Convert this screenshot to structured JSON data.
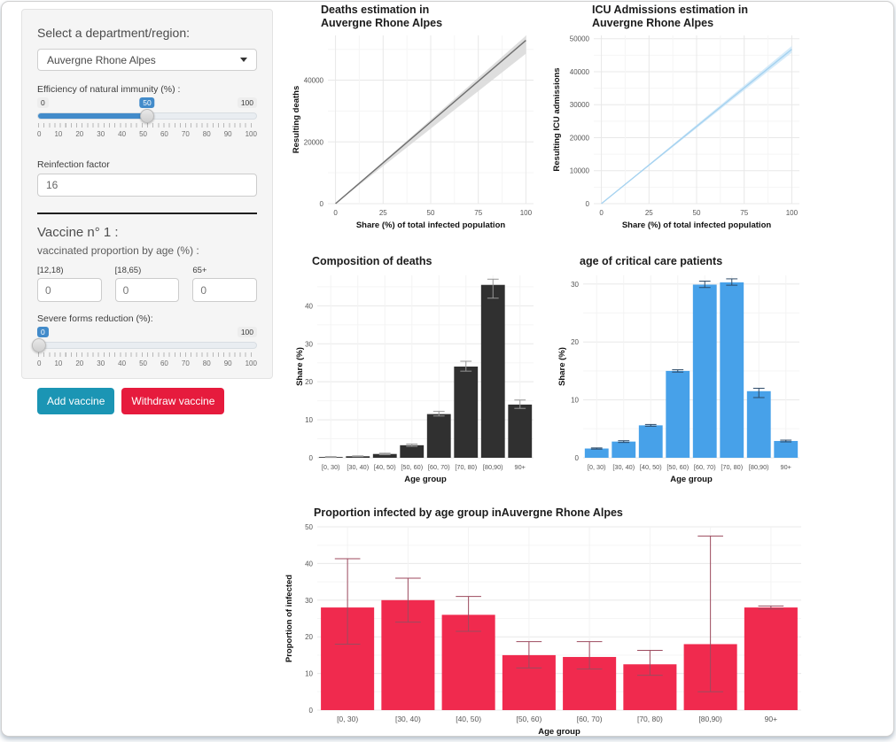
{
  "sidebar": {
    "region_label": "Select a department/region:",
    "region_value": "Auvergne Rhone Alpes",
    "immunity_slider": {
      "label": "Efficiency of natural immunity (%) :",
      "min": "0",
      "max": "100",
      "value": "50",
      "ticks": [
        "0",
        "10",
        "20",
        "30",
        "40",
        "50",
        "60",
        "70",
        "80",
        "90",
        "100"
      ]
    },
    "reinfection": {
      "label": "Reinfection factor",
      "value": "16"
    },
    "vaccine": {
      "title": "Vaccine n° 1 :",
      "subtitle": "vaccinated proportion by age (%) :",
      "age_inputs": [
        {
          "label": "[12,18)",
          "value": "0"
        },
        {
          "label": "[18,65)",
          "value": "0"
        },
        {
          "label": "65+",
          "value": "0"
        }
      ],
      "severe_slider": {
        "label": "Severe forms reduction (%):",
        "min": "0",
        "max": "100",
        "value": "0",
        "ticks": [
          "0",
          "10",
          "20",
          "30",
          "40",
          "50",
          "60",
          "70",
          "80",
          "90",
          "100"
        ]
      },
      "add_button": "Add vaccine",
      "withdraw_button": "Withdraw vaccine"
    }
  },
  "colors": {
    "slider_accent": "#428bca",
    "add_button": "#1b95b4",
    "withdraw_button": "#e61b3d",
    "deaths_line": "#6f6f6f",
    "icu_line": "#a5d2f0",
    "dark_bar": "#303030",
    "blue_bar": "#47a1e9",
    "red_bar": "#f02a4e"
  },
  "chart_data": [
    {
      "id": "deaths",
      "type": "line",
      "title_lines": [
        "Deaths estimation in",
        "Auvergne Rhone Alpes"
      ],
      "xlabel": "Share (%) of total infected population",
      "ylabel": "Resulting deaths",
      "xlim": [
        -4,
        104
      ],
      "ylim": [
        0,
        54500
      ],
      "xticks": [
        0,
        25,
        50,
        75,
        100
      ],
      "yticks": [
        0,
        20000,
        40000
      ],
      "line": {
        "x": [
          0,
          100
        ],
        "y": [
          0,
          52900
        ]
      },
      "ribbon": {
        "x": [
          0,
          100
        ],
        "lower": [
          0,
          48600
        ],
        "upper": [
          0,
          54400
        ]
      },
      "line_color": "#6f6f6f",
      "ribbon_color": "#d8d8d8",
      "legend": "none",
      "grid": "on"
    },
    {
      "id": "icu",
      "type": "line",
      "title_lines": [
        "ICU Admissions estimation in",
        "Auvergne Rhone Alpes"
      ],
      "xlabel": "Share (%) of total infected population",
      "ylabel": "Resulting ICU admissions",
      "xlim": [
        -4,
        104
      ],
      "ylim": [
        0,
        51000
      ],
      "xticks": [
        0,
        25,
        50,
        75,
        100
      ],
      "yticks": [
        0,
        10000,
        20000,
        30000,
        40000,
        50000
      ],
      "line": {
        "x": [
          0,
          100
        ],
        "y": [
          0,
          46800
        ]
      },
      "ribbon": {
        "x": [
          0,
          100
        ],
        "lower": [
          0,
          45800
        ],
        "upper": [
          0,
          47800
        ]
      },
      "line_color": "#a5d2f0",
      "ribbon_color": "#cfe7f8",
      "legend": "none",
      "grid": "on"
    },
    {
      "id": "comp",
      "type": "bar",
      "title_lines": [
        "Composition of deaths"
      ],
      "xlabel": "Age group",
      "ylabel": "Share (%)",
      "categories": [
        "[0, 30)",
        "[30, 40)",
        "[40, 50)",
        "[50, 60)",
        "[60, 70)",
        "[70, 80)",
        "[80,90)",
        "90+"
      ],
      "values": [
        0.2,
        0.4,
        1.0,
        3.3,
        11.5,
        24.0,
        45.5,
        14.0
      ],
      "err_low": [
        0.1,
        0.3,
        0.8,
        3.0,
        11.0,
        22.8,
        42.0,
        13.0
      ],
      "err_high": [
        0.3,
        0.5,
        1.2,
        3.6,
        12.2,
        25.4,
        47.0,
        15.2
      ],
      "ylim": [
        0,
        48
      ],
      "yticks": [
        0,
        10,
        20,
        30,
        40
      ],
      "bar_color": "#303030",
      "error_color": "#979797",
      "legend": "none",
      "grid": "on"
    },
    {
      "id": "crit",
      "type": "bar",
      "title_lines": [
        "age of critical care patients"
      ],
      "xlabel": "Age group",
      "ylabel": "Share (%)",
      "categories": [
        "[0, 30)",
        "[30, 40)",
        "[40, 50)",
        "[50, 60)",
        "[60, 70)",
        "[70, 80)",
        "[80,90)",
        "90+"
      ],
      "values": [
        1.6,
        2.8,
        5.6,
        15.0,
        29.9,
        30.3,
        11.5,
        2.9
      ],
      "err_low": [
        1.5,
        2.65,
        5.45,
        14.8,
        29.4,
        29.8,
        10.4,
        2.75
      ],
      "err_high": [
        1.7,
        2.95,
        5.75,
        15.2,
        30.5,
        30.9,
        12.0,
        3.05
      ],
      "ylim": [
        0,
        31.5
      ],
      "yticks": [
        0,
        10,
        20,
        30
      ],
      "bar_color": "#47a1e9",
      "error_color": "#2c4a68",
      "legend": "none",
      "grid": "on"
    },
    {
      "id": "inf",
      "type": "bar",
      "title_lines": [
        "Proportion infected by age group inAuvergne Rhone Alpes"
      ],
      "xlabel": "Age group",
      "ylabel": "Proportion of infected",
      "categories": [
        "[0, 30)",
        "[30, 40)",
        "[40, 50)",
        "[50, 60)",
        "[60, 70)",
        "[70, 80)",
        "[80,90)",
        "90+"
      ],
      "values": [
        28,
        30,
        26,
        15,
        14.5,
        12.5,
        18,
        28
      ],
      "err_low": [
        18,
        24,
        21.5,
        11.5,
        11.2,
        9.5,
        5,
        27.6
      ],
      "err_high": [
        41.3,
        36,
        31,
        18.7,
        18.7,
        16.3,
        47.5,
        28.4
      ],
      "ylim": [
        0,
        50
      ],
      "yticks": [
        0,
        10,
        20,
        30,
        40,
        50
      ],
      "bar_color": "#f02a4e",
      "error_color": "#9c4a5e",
      "legend": "none",
      "grid": "on"
    }
  ]
}
